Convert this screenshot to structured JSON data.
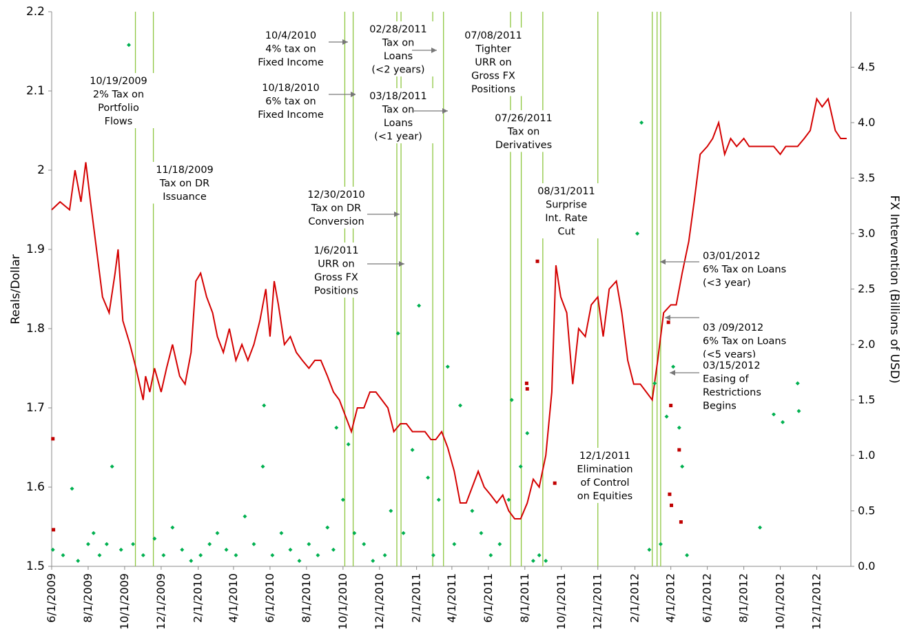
{
  "chart_data": {
    "type": "line",
    "y_label": "Reals/Dollar",
    "y2_label": "FX Intervention (Billions of USD)",
    "xlim": [
      "6/1/2009",
      "1/27/2013"
    ],
    "xticks": [
      "6/1/2009",
      "8/1/2009",
      "10/1/2009",
      "12/1/2009",
      "2/1/2010",
      "4/1/2010",
      "6/1/2010",
      "8/1/2010",
      "10/1/2010",
      "12/1/2010",
      "2/1/2011",
      "4/1/2011",
      "6/1/2011",
      "8/1/2011",
      "10/1/2011",
      "12/1/2011",
      "2/1/2012",
      "4/1/2012",
      "6/1/2012",
      "8/1/2012",
      "10/1/2012",
      "12/1/2012"
    ],
    "ylim": [
      1.5,
      2.2
    ],
    "yticks": [
      1.5,
      1.6,
      1.7,
      1.8,
      1.9,
      {
        "value": 2,
        "label": "2"
      },
      2.1,
      2.2
    ],
    "y2lim": [
      0,
      5
    ],
    "y2ticks": [
      {
        "value": 0,
        "label": "0.0"
      },
      0.5,
      {
        "value": 1,
        "label": "1.0"
      },
      1.5,
      {
        "value": 2,
        "label": "2.0"
      },
      2.5,
      {
        "value": 3,
        "label": "3.0"
      },
      3.5,
      {
        "value": 4,
        "label": "4.0"
      },
      4.5
    ],
    "series": [
      {
        "type": "line",
        "axis": "y",
        "color": "#d40000",
        "x": [
          "6/1/2009",
          "6/15/2009",
          "7/1/2009",
          "7/10/2009",
          "7/20/2009",
          "7/28/2009",
          "8/5/2009",
          "8/15/2009",
          "8/25/2009",
          "9/5/2009",
          "9/15/2009",
          "9/20/2009",
          "9/28/2009",
          "10/10/2009",
          "10/20/2009",
          "11/1/2009",
          "11/5/2009",
          "11/12/2009",
          "11/20/2009",
          "12/1/2009",
          "12/10/2009",
          "12/20/2009",
          "1/1/2010",
          "1/10/2010",
          "1/20/2010",
          "1/28/2010",
          "2/5/2010",
          "2/15/2010",
          "2/25/2010",
          "3/5/2010",
          "3/15/2010",
          "3/25/2010",
          "4/5/2010",
          "4/15/2010",
          "4/25/2010",
          "5/5/2010",
          "5/15/2010",
          "5/25/2010",
          "6/1/2010",
          "6/8/2010",
          "6/15/2010",
          "6/25/2010",
          "7/5/2010",
          "7/15/2010",
          "7/25/2010",
          "8/5/2010",
          "8/15/2010",
          "8/25/2010",
          "9/5/2010",
          "9/15/2010",
          "9/25/2010",
          "10/5/2010",
          "10/15/2010",
          "10/25/2010",
          "11/5/2010",
          "11/15/2010",
          "11/25/2010",
          "12/5/2010",
          "12/15/2010",
          "12/25/2010",
          "1/5/2011",
          "1/15/2011",
          "1/25/2011",
          "2/5/2011",
          "2/15/2011",
          "2/25/2011",
          "3/5/2011",
          "3/15/2011",
          "3/25/2011",
          "4/5/2011",
          "4/15/2011",
          "4/25/2011",
          "5/5/2011",
          "5/15/2011",
          "5/25/2011",
          "6/5/2011",
          "6/15/2011",
          "6/25/2011",
          "7/5/2011",
          "7/15/2011",
          "7/25/2011",
          "8/5/2011",
          "8/15/2011",
          "8/25/2011",
          "9/5/2011",
          "9/15/2011",
          "9/22/2011",
          "9/30/2011",
          "10/10/2011",
          "10/20/2011",
          "10/30/2011",
          "11/10/2011",
          "11/20/2011",
          "12/1/2011",
          "12/10/2011",
          "12/20/2011",
          "1/1/2012",
          "1/10/2012",
          "1/20/2012",
          "1/30/2012",
          "2/10/2012",
          "2/20/2012",
          "3/1/2012",
          "3/10/2012",
          "3/20/2012",
          "4/1/2012",
          "4/10/2012",
          "4/20/2012",
          "5/1/2012",
          "5/10/2012",
          "5/20/2012",
          "6/1/2012",
          "6/10/2012",
          "6/20/2012",
          "6/30/2012",
          "7/10/2012",
          "7/20/2012",
          "8/1/2012",
          "8/10/2012",
          "8/20/2012",
          "9/1/2012",
          "9/10/2012",
          "9/20/2012",
          "10/1/2012",
          "10/10/2012",
          "10/20/2012",
          "10/30/2012",
          "11/10/2012",
          "11/20/2012",
          "12/1/2012",
          "12/10/2012",
          "12/20/2012",
          "1/1/2013",
          "1/10/2013",
          "1/20/2013"
        ],
        "values": [
          1.95,
          1.96,
          1.95,
          2.0,
          1.96,
          2.01,
          1.96,
          1.9,
          1.84,
          1.82,
          1.87,
          1.9,
          1.81,
          1.78,
          1.75,
          1.71,
          1.74,
          1.72,
          1.75,
          1.72,
          1.75,
          1.78,
          1.74,
          1.73,
          1.77,
          1.86,
          1.87,
          1.84,
          1.82,
          1.79,
          1.77,
          1.8,
          1.76,
          1.78,
          1.76,
          1.78,
          1.81,
          1.85,
          1.79,
          1.86,
          1.83,
          1.78,
          1.79,
          1.77,
          1.76,
          1.75,
          1.76,
          1.76,
          1.74,
          1.72,
          1.71,
          1.69,
          1.67,
          1.7,
          1.7,
          1.72,
          1.72,
          1.71,
          1.7,
          1.67,
          1.68,
          1.68,
          1.67,
          1.67,
          1.67,
          1.66,
          1.66,
          1.67,
          1.65,
          1.62,
          1.58,
          1.58,
          1.6,
          1.62,
          1.6,
          1.59,
          1.58,
          1.59,
          1.57,
          1.56,
          1.56,
          1.58,
          1.61,
          1.6,
          1.64,
          1.72,
          1.88,
          1.84,
          1.82,
          1.73,
          1.8,
          1.79,
          1.83,
          1.84,
          1.79,
          1.85,
          1.86,
          1.82,
          1.76,
          1.73,
          1.73,
          1.72,
          1.71,
          1.76,
          1.82,
          1.83,
          1.83,
          1.87,
          1.91,
          1.96,
          2.02,
          2.03,
          2.04,
          2.06,
          2.02,
          2.04,
          2.03,
          2.04,
          2.03,
          2.03,
          2.03,
          2.03,
          2.03,
          2.02,
          2.03,
          2.03,
          2.03,
          2.04,
          2.05,
          2.09,
          2.08,
          2.09,
          2.05,
          2.04,
          2.04
        ]
      },
      {
        "type": "scatter",
        "axis": "y2",
        "color": "#00b050",
        "x": [
          "6/3/2009",
          "6/20/2009",
          "7/5/2009",
          "7/15/2009",
          "8/1/2009",
          "8/10/2009",
          "8/20/2009",
          "9/1/2009",
          "9/10/2009",
          "9/25/2009",
          "10/8/2009",
          "10/15/2009",
          "11/1/2009",
          "11/20/2009",
          "12/5/2009",
          "12/20/2009",
          "1/5/2010",
          "1/20/2010",
          "2/5/2010",
          "2/20/2010",
          "3/5/2010",
          "3/20/2010",
          "4/5/2010",
          "4/20/2010",
          "5/5/2010",
          "5/20/2010",
          "5/22/2010",
          "6/5/2010",
          "6/20/2010",
          "7/5/2010",
          "7/20/2010",
          "8/5/2010",
          "8/20/2010",
          "9/5/2010",
          "9/15/2010",
          "9/20/2010",
          "10/1/2010",
          "10/10/2010",
          "10/20/2010",
          "11/5/2010",
          "11/20/2010",
          "12/10/2010",
          "12/20/2010",
          "1/1/2011",
          "1/10/2011",
          "1/25/2011",
          "2/5/2011",
          "2/20/2011",
          "3/1/2011",
          "3/10/2011",
          "3/25/2011",
          "4/5/2011",
          "4/15/2011",
          "5/5/2011",
          "5/20/2011",
          "6/5/2011",
          "6/20/2011",
          "7/5/2011",
          "7/10/2011",
          "7/25/2011",
          "8/5/2011",
          "8/15/2011",
          "8/25/2011",
          "9/5/2011",
          "2/5/2012",
          "2/12/2012",
          "2/25/2012",
          "3/5/2012",
          "3/15/2012",
          "3/25/2012",
          "4/5/2012",
          "4/15/2012",
          "4/20/2012",
          "4/28/2012",
          "8/28/2012",
          "9/20/2012",
          "10/5/2012",
          "10/30/2012",
          "11/1/2012"
        ],
        "values": [
          0.15,
          0.1,
          0.7,
          0.05,
          0.2,
          0.3,
          0.1,
          0.2,
          0.9,
          0.15,
          4.7,
          0.2,
          0.1,
          0.25,
          0.1,
          0.35,
          0.15,
          0.05,
          0.1,
          0.2,
          0.3,
          0.15,
          0.1,
          0.45,
          0.2,
          0.9,
          1.45,
          0.1,
          0.3,
          0.15,
          0.05,
          0.2,
          0.1,
          0.35,
          0.15,
          1.25,
          0.6,
          1.1,
          0.3,
          0.2,
          0.05,
          0.1,
          0.5,
          2.1,
          0.3,
          1.05,
          2.35,
          0.8,
          0.1,
          0.6,
          1.8,
          0.2,
          1.45,
          0.5,
          0.3,
          0.1,
          0.2,
          0.6,
          1.5,
          0.9,
          1.2,
          0.05,
          0.1,
          0.05,
          3.0,
          4.0,
          0.15,
          1.65,
          0.2,
          1.35,
          1.8,
          1.25,
          0.9,
          0.1,
          0.35,
          1.37,
          1.3,
          1.65,
          1.4
        ]
      },
      {
        "type": "scatter",
        "axis": "y2",
        "color": "#c00000",
        "x": [
          "6/3/2009",
          "6/4/2009",
          "8/4/2011",
          "8/5/2011",
          "8/22/2011",
          "9/20/2011",
          "3/28/2012",
          "3/30/2012",
          "4/1/2012",
          "4/2/2012",
          "4/15/2012",
          "4/18/2012"
        ],
        "values": [
          1.15,
          0.33,
          1.65,
          1.6,
          2.75,
          0.75,
          2.2,
          0.65,
          1.45,
          0.55,
          1.05,
          0.4
        ]
      }
    ],
    "events": [
      {
        "date": "10/19/2009",
        "lines": [
          "2% Tax on",
          "Portfolio",
          "Flows"
        ]
      },
      {
        "date": "11/18/2009",
        "lines": [
          "Tax on DR",
          "Issuance"
        ]
      },
      {
        "date": "10/4/2010",
        "lines": [
          "4% tax on",
          "Fixed Income"
        ]
      },
      {
        "date": "10/18/2010",
        "lines": [
          "6% tax on",
          "Fixed Income"
        ]
      },
      {
        "date": "12/30/2010",
        "lines": [
          "Tax on DR",
          "Conversion"
        ]
      },
      {
        "date": "1/6/2011",
        "lines": [
          "URR on",
          "Gross FX",
          "Positions"
        ]
      },
      {
        "date": "02/28/2011",
        "lines": [
          "Tax on",
          "Loans",
          "(<2 years)"
        ]
      },
      {
        "date": "03/18/2011",
        "lines": [
          "Tax on",
          "Loans",
          "(<1 year)"
        ]
      },
      {
        "date": "07/08/2011",
        "lines": [
          "Tighter",
          "URR on",
          "Gross FX",
          "Positions"
        ]
      },
      {
        "date": "07/26/2011",
        "lines": [
          "Tax on",
          "Derivatives"
        ]
      },
      {
        "date": "08/31/2011",
        "lines": [
          "Surprise",
          "Int. Rate",
          "Cut"
        ]
      },
      {
        "date": "12/1/2011",
        "lines": [
          "Elimination",
          "of Control",
          "on Equities"
        ]
      },
      {
        "date": "03/01/2012",
        "lines": [
          "6% Tax on Loans",
          "(<3 year)"
        ]
      },
      {
        "date": "03 /09/2012",
        "lines": [
          "6% Tax on Loans",
          "(<5 years)"
        ]
      },
      {
        "date": "03/15/2012",
        "lines": [
          "Easing of",
          "Restrictions",
          "Begins"
        ]
      }
    ]
  }
}
